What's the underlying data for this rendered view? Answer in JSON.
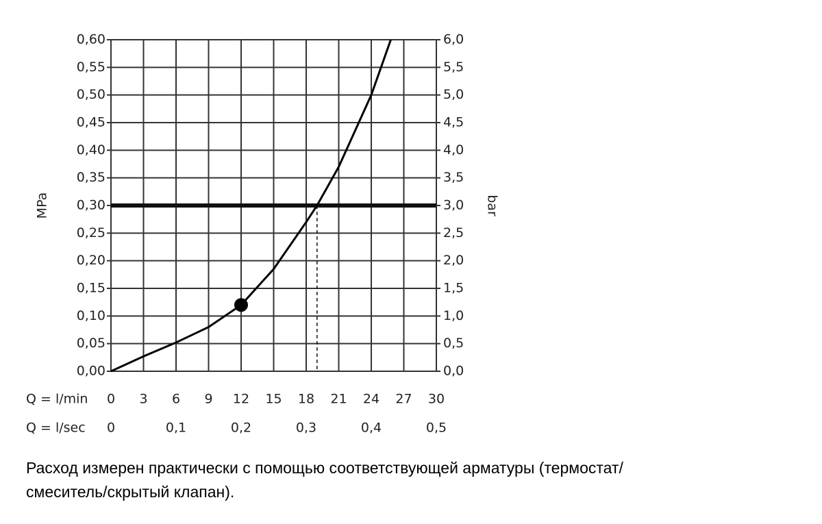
{
  "chart_data": {
    "type": "line",
    "y_label": "MPa",
    "y2_label": "bar",
    "x_label": "Q = l/min",
    "x2_label": "Q = l/sec",
    "x": [
      0,
      3,
      6,
      9,
      12,
      15,
      18,
      19,
      21,
      24,
      25.8
    ],
    "values": [
      0,
      0.027,
      0.052,
      0.08,
      0.12,
      0.185,
      0.27,
      0.3,
      0.37,
      0.5,
      0.6
    ],
    "color": "#000000",
    "marker": {
      "x": 12,
      "y": 0.12
    },
    "thick_line_y": 0.3,
    "dashed_line_x": 19,
    "xlim": [
      0,
      30
    ],
    "xticks": [
      0,
      3,
      6,
      9,
      12,
      15,
      18,
      21,
      24,
      27,
      30
    ],
    "x2lim": [
      0,
      0.5
    ],
    "x2ticks": [
      0,
      {
        "value": 0.1,
        "label": "0,1"
      },
      {
        "value": 0.2,
        "label": "0,2"
      },
      {
        "value": 0.3,
        "label": "0,3"
      },
      {
        "value": 0.4,
        "label": "0,4"
      },
      {
        "value": 0.5,
        "label": "0,5"
      }
    ],
    "ylim": [
      0,
      0.6
    ],
    "yticks": [
      {
        "value": 0,
        "label": "0,00"
      },
      {
        "value": 0.05,
        "label": "0,05"
      },
      {
        "value": 0.1,
        "label": "0,10"
      },
      {
        "value": 0.15,
        "label": "0,15"
      },
      {
        "value": 0.2,
        "label": "0,20"
      },
      {
        "value": 0.25,
        "label": "0,25"
      },
      {
        "value": 0.3,
        "label": "0,30"
      },
      {
        "value": 0.35,
        "label": "0,35"
      },
      {
        "value": 0.4,
        "label": "0,40"
      },
      {
        "value": 0.45,
        "label": "0,45"
      },
      {
        "value": 0.5,
        "label": "0,50"
      },
      {
        "value": 0.55,
        "label": "0,55"
      },
      {
        "value": 0.6,
        "label": "0,60"
      }
    ],
    "y2lim": [
      0,
      6
    ],
    "y2ticks": [
      {
        "value": 0,
        "label": "0,0"
      },
      {
        "value": 0.5,
        "label": "0,5"
      },
      {
        "value": 1,
        "label": "1,0"
      },
      {
        "value": 1.5,
        "label": "1,5"
      },
      {
        "value": 2,
        "label": "2,0"
      },
      {
        "value": 2.5,
        "label": "2,5"
      },
      {
        "value": 3,
        "label": "3,0"
      },
      {
        "value": 3.5,
        "label": "3,5"
      },
      {
        "value": 4,
        "label": "4,0"
      },
      {
        "value": 4.5,
        "label": "4,5"
      },
      {
        "value": 5,
        "label": "5,0"
      },
      {
        "value": 5.5,
        "label": "5,5"
      },
      {
        "value": 6,
        "label": "6,0"
      }
    ],
    "grid": true
  },
  "caption": {
    "lines": [
      "Расход измерен практически с помощью соответствующей арматуры (термостат/",
      "смеситель/скрытый клапан)."
    ]
  }
}
